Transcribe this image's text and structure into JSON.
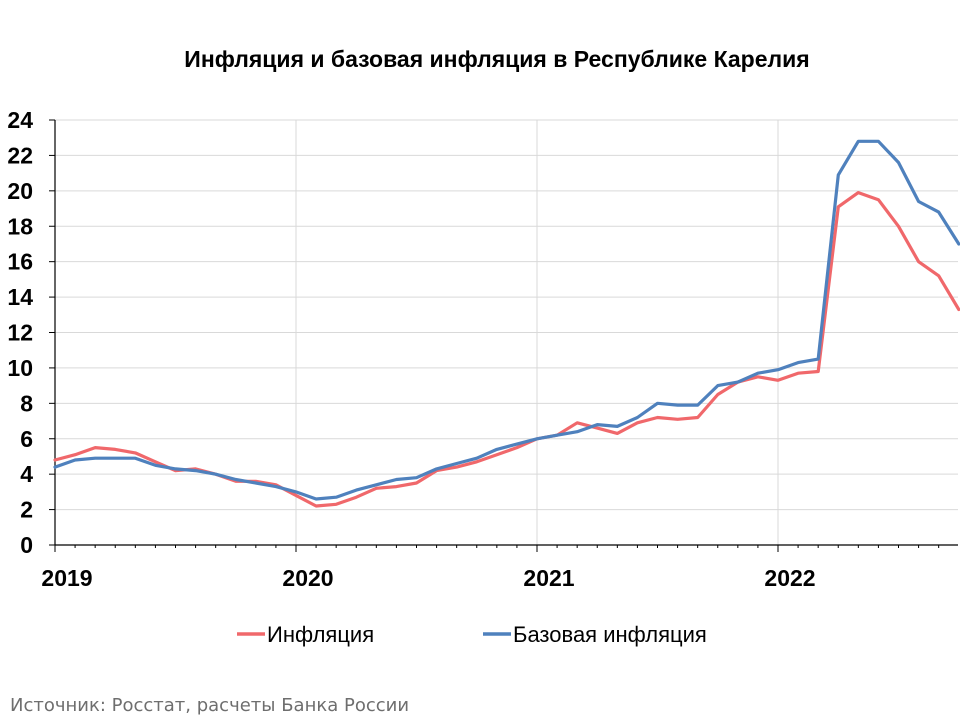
{
  "chart_data": {
    "type": "line",
    "title": "Инфляция и базовая инфляция в Республике Карелия",
    "source": "Источник: Росстат, расчеты Банка России",
    "x_axis_labels": [
      "2019",
      "2020",
      "2021",
      "2022"
    ],
    "y_tick_labels": [
      "0",
      "2",
      "4",
      "6",
      "8",
      "10",
      "12",
      "14",
      "16",
      "18",
      "20",
      "22",
      "24"
    ],
    "ylim": [
      0,
      24
    ],
    "grid": true,
    "legend_position": "bottom",
    "x": [
      "2019-01",
      "2019-02",
      "2019-03",
      "2019-04",
      "2019-05",
      "2019-06",
      "2019-07",
      "2019-08",
      "2019-09",
      "2019-10",
      "2019-11",
      "2019-12",
      "2020-01",
      "2020-02",
      "2020-03",
      "2020-04",
      "2020-05",
      "2020-06",
      "2020-07",
      "2020-08",
      "2020-09",
      "2020-10",
      "2020-11",
      "2020-12",
      "2021-01",
      "2021-02",
      "2021-03",
      "2021-04",
      "2021-05",
      "2021-06",
      "2021-07",
      "2021-08",
      "2021-09",
      "2021-10",
      "2021-11",
      "2021-12",
      "2022-01",
      "2022-02",
      "2022-03",
      "2022-04",
      "2022-05",
      "2022-06",
      "2022-07",
      "2022-08",
      "2022-09",
      "2022-10"
    ],
    "series": [
      {
        "name": "Инфляция",
        "color": "#f0686b",
        "values": [
          4.8,
          5.1,
          5.5,
          5.4,
          5.2,
          4.7,
          4.2,
          4.3,
          4.0,
          3.6,
          3.6,
          3.4,
          2.8,
          2.2,
          2.3,
          2.7,
          3.2,
          3.3,
          3.5,
          4.2,
          4.4,
          4.7,
          5.1,
          5.5,
          6.0,
          6.2,
          6.9,
          6.6,
          6.3,
          6.9,
          7.2,
          7.1,
          7.2,
          8.5,
          9.2,
          9.5,
          9.3,
          9.7,
          9.8,
          19.1,
          19.9,
          19.5,
          18.0,
          16.0,
          15.2,
          13.3
        ]
      },
      {
        "name": "Базовая инфляция",
        "color": "#4f81bd",
        "values": [
          4.4,
          4.8,
          4.9,
          4.9,
          4.9,
          4.5,
          4.3,
          4.2,
          4.0,
          3.7,
          3.5,
          3.3,
          3.0,
          2.6,
          2.7,
          3.1,
          3.4,
          3.7,
          3.8,
          4.3,
          4.6,
          4.9,
          5.4,
          5.7,
          6.0,
          6.2,
          6.4,
          6.8,
          6.7,
          7.2,
          8.0,
          7.9,
          7.9,
          9.0,
          9.2,
          9.7,
          9.9,
          10.3,
          10.5,
          20.9,
          22.8,
          22.8,
          21.6,
          19.4,
          18.8,
          17.0
        ]
      }
    ]
  }
}
